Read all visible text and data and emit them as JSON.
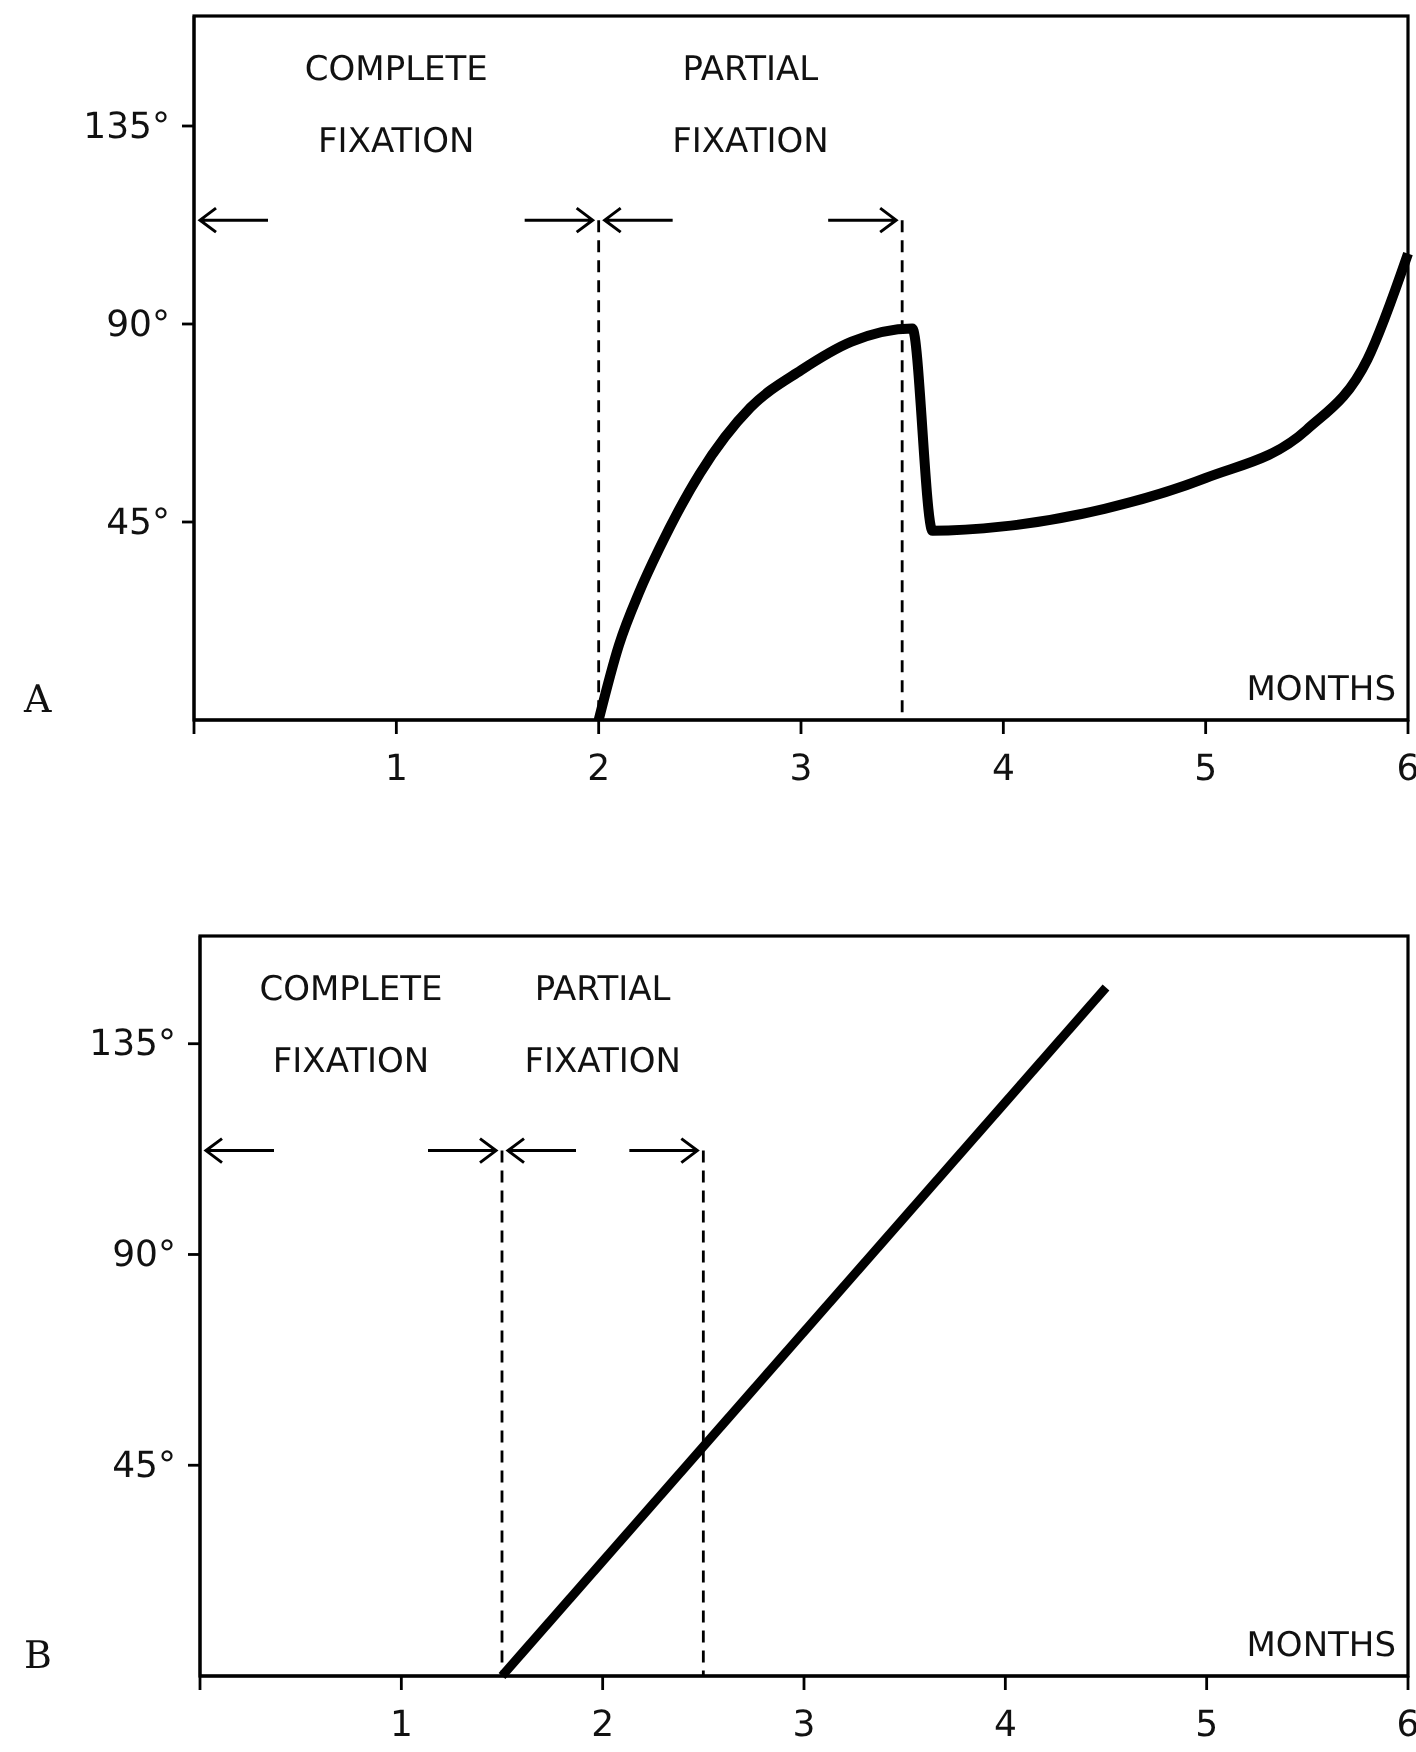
{
  "chart_data": [
    {
      "type": "line",
      "title": "A",
      "xlabel": "MONTHS",
      "xlim": [
        0,
        6
      ],
      "ylim": [
        0,
        160
      ],
      "xticks": [
        {
          "value": 0,
          "label": null
        },
        1,
        2,
        3,
        4,
        5,
        6
      ],
      "yticks": [
        {
          "value": 45,
          "label": "45°"
        },
        {
          "value": 90,
          "label": "90°"
        },
        {
          "value": 135,
          "label": "135°"
        }
      ],
      "series": [
        {
          "color": "#000000",
          "x": [
            2,
            2.1,
            2.2,
            2.3,
            2.5,
            2.75,
            3,
            3.25,
            3.55,
            3.65,
            4,
            4.5,
            5,
            5.5,
            5.8,
            6
          ],
          "values": [
            0,
            17,
            29,
            39,
            56,
            71,
            79.5,
            86,
            89,
            43,
            44,
            48,
            55,
            66,
            82,
            106
          ]
        }
      ],
      "ref_lines": [
        {
          "axis": "x",
          "value": 2,
          "line_style": "dashed"
        },
        {
          "axis": "x",
          "value": 3.5,
          "line_style": "dashed"
        }
      ],
      "annotations": [
        "COMPLETE FIXATION",
        "PARTIAL FIXATION"
      ],
      "line_style": "solid",
      "marker": "none"
    },
    {
      "type": "line",
      "title": "B",
      "xlabel": "MONTHS",
      "xlim": [
        0,
        6
      ],
      "ylim": [
        0,
        158
      ],
      "xticks": [
        {
          "value": 0,
          "label": null
        },
        1,
        2,
        3,
        4,
        5,
        6
      ],
      "yticks": [
        {
          "value": 45,
          "label": "45°"
        },
        {
          "value": 90,
          "label": "90°"
        },
        {
          "value": 135,
          "label": "135°"
        }
      ],
      "series": [
        {
          "color": "#000000",
          "x": [
            1.5,
            4.5
          ],
          "values": [
            0,
            147
          ]
        }
      ],
      "ref_lines": [
        {
          "axis": "x",
          "value": 1.5,
          "line_style": "dashed"
        },
        {
          "axis": "x",
          "value": 2.5,
          "line_style": "dashed"
        }
      ],
      "annotations": [
        "COMPLETE FIXATION",
        "PARTIAL FIXATION"
      ],
      "line_style": "solid",
      "marker": "none"
    }
  ]
}
